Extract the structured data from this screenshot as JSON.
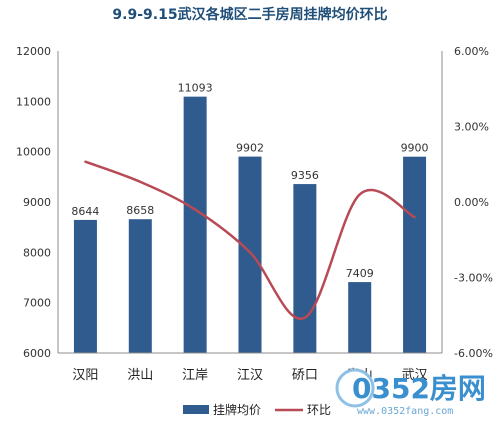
{
  "chart_data": {
    "type": "bar+line",
    "title": "9.9-9.15武汉各城区二手房周挂牌均价环比",
    "categories": [
      "汉阳",
      "洪山",
      "江岸",
      "江汉",
      "硚口",
      "青山",
      "武汉"
    ],
    "series": [
      {
        "name": "挂牌均价",
        "type": "bar",
        "axis": "left",
        "color": "#2f5b8e",
        "values": [
          8644,
          8658,
          11093,
          9902,
          9356,
          7409,
          9900
        ]
      },
      {
        "name": "环比",
        "type": "line",
        "axis": "right",
        "color": "#b84a55",
        "values": [
          1.6,
          0.8,
          -0.3,
          -2.0,
          -4.6,
          0.3,
          -0.6
        ]
      }
    ],
    "left_axis": {
      "min": 6000,
      "max": 12000,
      "ticks": [
        "6000",
        "7000",
        "8000",
        "9000",
        "10000",
        "11000",
        "12000"
      ]
    },
    "right_axis": {
      "min": -6,
      "max": 6,
      "ticks": [
        "-6.00%",
        "-3.00%",
        "0.00%",
        "3.00%",
        "6.00%"
      ]
    },
    "data_labels": [
      "8644",
      "8658",
      "11093",
      "9902",
      "9356",
      "7409",
      "9900"
    ],
    "legend_position": "bottom",
    "grid": false
  },
  "watermark": {
    "main": "0352房网",
    "sub": "www.0352fang.com"
  }
}
